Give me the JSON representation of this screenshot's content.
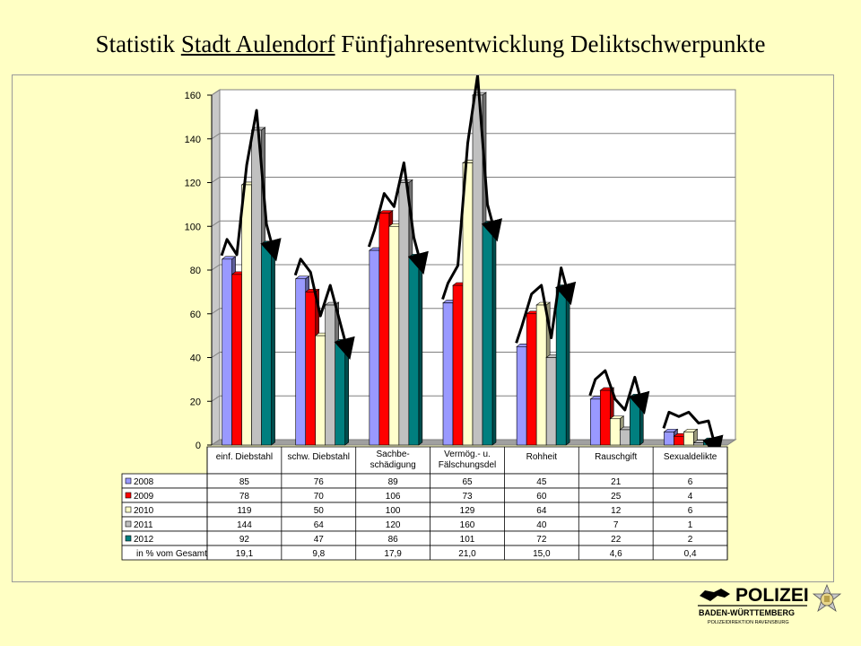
{
  "title": {
    "part1": "Statistik ",
    "part2": "Stadt Aulendorf",
    "part3": " Fünfjahresentwicklung  Deliktschwerpunkte"
  },
  "chart_data": {
    "type": "bar",
    "categories": [
      "einf. Diebstahl",
      "schw. Diebstahl",
      "Sachbe-\nschädigung",
      "Vermög.- u.\nFälschungsdel",
      "Rohheit",
      "Rauschgift",
      "Sexualdelikte"
    ],
    "series": [
      {
        "name": "2008",
        "color": "#9999ff",
        "values": [
          85,
          76,
          89,
          65,
          45,
          21,
          6
        ]
      },
      {
        "name": "2009",
        "color": "#ff0000",
        "values": [
          78,
          70,
          106,
          73,
          60,
          25,
          4
        ]
      },
      {
        "name": "2010",
        "color": "#ffffcc",
        "values": [
          119,
          50,
          100,
          129,
          64,
          12,
          6
        ]
      },
      {
        "name": "2011",
        "color": "#c0c0c0",
        "values": [
          144,
          64,
          120,
          160,
          40,
          7,
          1
        ]
      },
      {
        "name": "2012",
        "color": "#007f7f",
        "values": [
          92,
          47,
          86,
          101,
          72,
          22,
          2
        ]
      }
    ],
    "extra_row": {
      "name": "in % vom Gesamt",
      "values": [
        "19,1",
        "9,8",
        "17,9",
        "21,0",
        "15,0",
        "4,6",
        "0,4"
      ]
    },
    "yticks": [
      0,
      20,
      40,
      60,
      80,
      100,
      120,
      140,
      160
    ],
    "ylim": [
      0,
      160
    ],
    "grid": true,
    "legend": "data table below chart"
  },
  "logo": {
    "name": "POLIZEI",
    "line1": "BADEN-WÜRTTEMBERG",
    "line2": "POLIZEIDIREKTION RAVENSBURG"
  }
}
